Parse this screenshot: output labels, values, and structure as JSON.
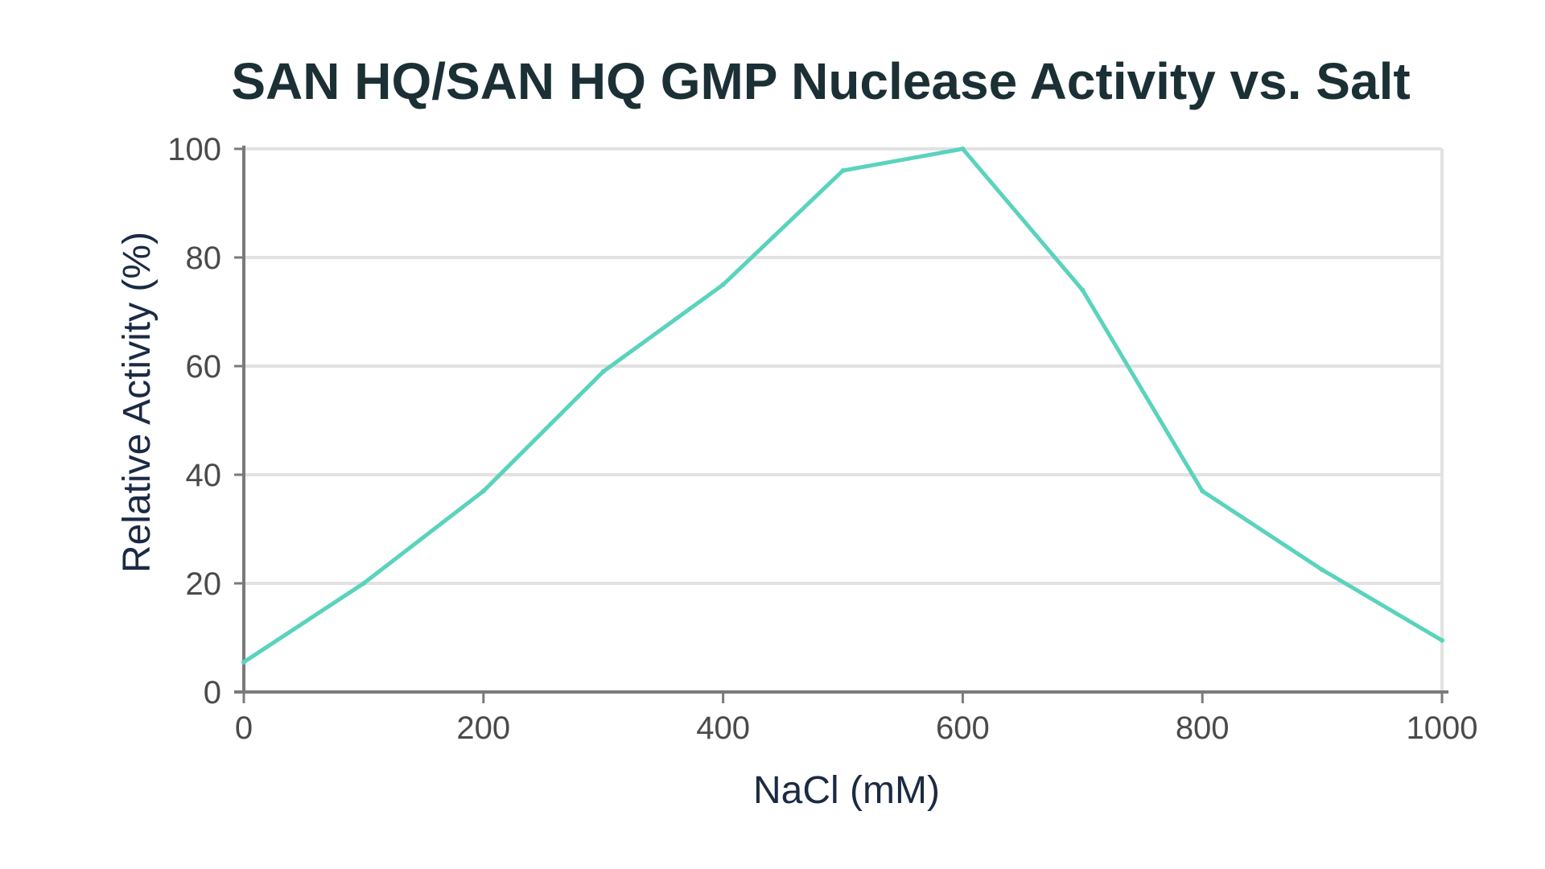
{
  "chart_data": {
    "type": "line",
    "title": "SAN HQ/SAN HQ GMP Nuclease Activity vs. Salt",
    "xlabel": "NaCl (mM)",
    "ylabel": "Relative Activity (%)",
    "xlim": [
      0,
      1000
    ],
    "ylim": [
      0,
      100
    ],
    "x_ticks": [
      "0",
      "200",
      "400",
      "600",
      "800",
      "1000"
    ],
    "y_ticks": [
      "0",
      "20",
      "40",
      "60",
      "80",
      "100"
    ],
    "grid": true,
    "legend": "none",
    "series": [
      {
        "x": [
          0,
          100,
          200,
          300,
          400,
          500,
          600,
          700,
          800,
          900,
          1000
        ],
        "y": [
          5.5,
          20,
          37,
          59,
          75,
          96,
          100,
          74,
          37,
          22.5,
          9.5
        ]
      }
    ]
  },
  "colors": {
    "line": "#5ad3bd",
    "title": "#1b3035",
    "axis_title": "#1b2a44",
    "tick_label": "#4a4a4a",
    "axis": "#7a7a7a",
    "grid": "#e2e2e2"
  }
}
